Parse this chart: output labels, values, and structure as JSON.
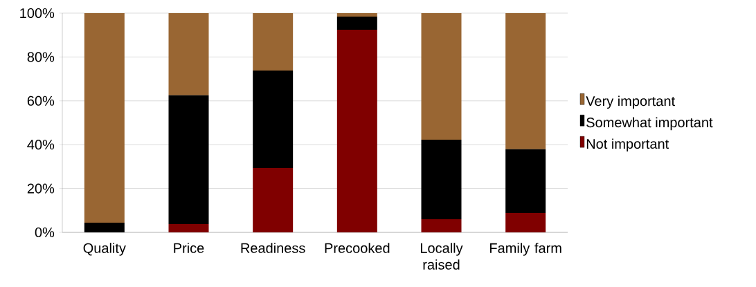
{
  "chart_data": {
    "type": "bar",
    "stacked": true,
    "categories": [
      "Quality",
      "Price",
      "Readiness",
      "Precooked",
      "Locally raised",
      "Family farm"
    ],
    "series": [
      {
        "name": "Not important",
        "color": "#800000",
        "values": [
          0,
          3.8,
          29.3,
          92.4,
          6.0,
          8.8
        ]
      },
      {
        "name": "Somewhat important",
        "color": "#000000",
        "values": [
          4.4,
          58.7,
          44.5,
          6.0,
          36.3,
          29.1
        ]
      },
      {
        "name": "Very important",
        "color": "#996633",
        "values": [
          95.6,
          37.5,
          26.2,
          1.6,
          57.7,
          62.1
        ]
      }
    ],
    "ylim": [
      0,
      100
    ],
    "yticks": [
      {
        "value": 0,
        "label": "0%"
      },
      {
        "value": 20,
        "label": "20%"
      },
      {
        "value": 40,
        "label": "40%"
      },
      {
        "value": 60,
        "label": "60%"
      },
      {
        "value": 80,
        "label": "80%"
      },
      {
        "value": 100,
        "label": "100%"
      }
    ],
    "grid": "y",
    "legend": "right"
  }
}
